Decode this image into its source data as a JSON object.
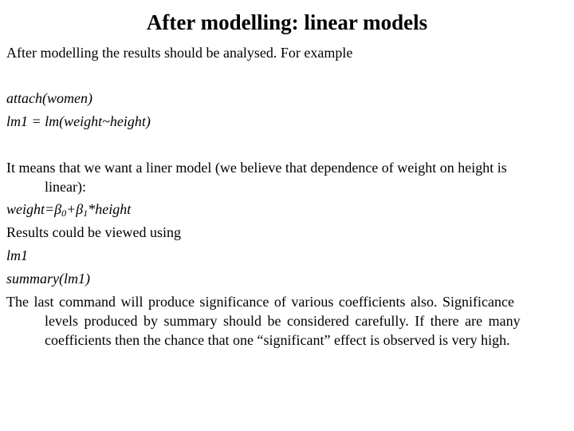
{
  "slide": {
    "title": "After modelling: linear models",
    "intro": "After modelling the results should be analysed. For example",
    "code_lines": [
      "attach(women)",
      "lm1 = lm(weight~height)"
    ],
    "explanation_line1": "It means that we want a liner model (we believe that dependence of weight on height is",
    "explanation_line2": "linear):",
    "formula": {
      "lhs": "weight=",
      "beta": "β",
      "sub0": "0",
      "plus": "+",
      "sub1": "1",
      "rhs": "*height"
    },
    "results_text": "Results could be viewed using",
    "view_commands": [
      "lm1",
      "summary(lm1)"
    ],
    "closing_line1": "The last command will produce significance of various coefficients also. Significance",
    "closing_line2": "levels produced by summary should be considered carefully. If there are many",
    "closing_line3": "coefficients then the chance that one “significant” effect is observed is very high."
  }
}
